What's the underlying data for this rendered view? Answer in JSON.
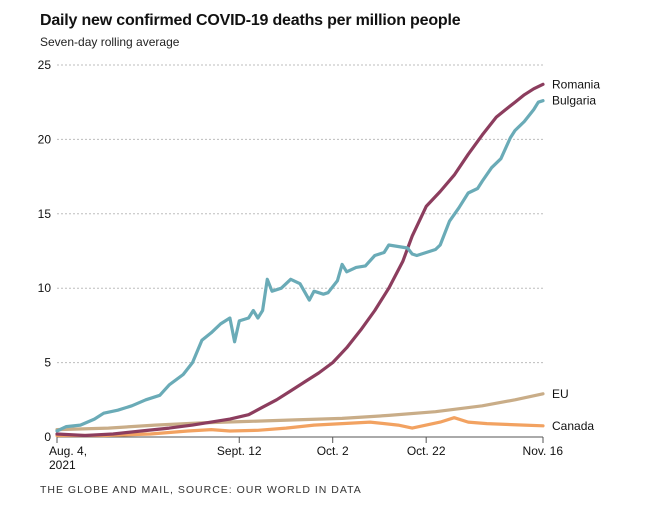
{
  "title": "Daily new confirmed COVID-19 deaths per million people",
  "subtitle": "Seven-day rolling average",
  "source": "THE GLOBE AND MAIL, SOURCE: OUR WORLD IN DATA",
  "chart_data": {
    "type": "line",
    "title": "Daily new confirmed COVID-19 deaths per million people",
    "subtitle": "Seven-day rolling average",
    "xlabel": "",
    "ylabel": "",
    "x_start": "2021-08-04",
    "x_end": "2021-11-16",
    "ylim": [
      0,
      25
    ],
    "yticks": [
      0,
      5,
      10,
      15,
      20,
      25
    ],
    "xticks": [
      {
        "date": "2021-08-04",
        "label": "Aug. 4,",
        "label2": "2021"
      },
      {
        "date": "2021-09-12",
        "label": "Sept. 12",
        "label2": ""
      },
      {
        "date": "2021-10-02",
        "label": "Oct. 2",
        "label2": ""
      },
      {
        "date": "2021-10-22",
        "label": "Oct. 22",
        "label2": ""
      },
      {
        "date": "2021-11-16",
        "label": "Nov. 16",
        "label2": ""
      }
    ],
    "grid": true,
    "legend": "direct labels at right end of lines",
    "series": [
      {
        "name": "Bulgaria",
        "color": "#6aabb7",
        "points": [
          [
            "2021-08-04",
            0.4
          ],
          [
            "2021-08-06",
            0.7
          ],
          [
            "2021-08-09",
            0.8
          ],
          [
            "2021-08-12",
            1.2
          ],
          [
            "2021-08-14",
            1.6
          ],
          [
            "2021-08-17",
            1.8
          ],
          [
            "2021-08-20",
            2.1
          ],
          [
            "2021-08-23",
            2.5
          ],
          [
            "2021-08-26",
            2.8
          ],
          [
            "2021-08-28",
            3.5
          ],
          [
            "2021-08-31",
            4.2
          ],
          [
            "2021-09-02",
            5.0
          ],
          [
            "2021-09-04",
            6.5
          ],
          [
            "2021-09-06",
            7.0
          ],
          [
            "2021-09-08",
            7.6
          ],
          [
            "2021-09-10",
            8.0
          ],
          [
            "2021-09-11",
            6.4
          ],
          [
            "2021-09-12",
            7.8
          ],
          [
            "2021-09-14",
            8.0
          ],
          [
            "2021-09-15",
            8.5
          ],
          [
            "2021-09-16",
            8.0
          ],
          [
            "2021-09-17",
            8.5
          ],
          [
            "2021-09-18",
            10.6
          ],
          [
            "2021-09-19",
            9.8
          ],
          [
            "2021-09-21",
            10.0
          ],
          [
            "2021-09-23",
            10.6
          ],
          [
            "2021-09-25",
            10.3
          ],
          [
            "2021-09-27",
            9.2
          ],
          [
            "2021-09-28",
            9.8
          ],
          [
            "2021-09-30",
            9.6
          ],
          [
            "2021-10-01",
            9.7
          ],
          [
            "2021-10-03",
            10.5
          ],
          [
            "2021-10-04",
            11.6
          ],
          [
            "2021-10-05",
            11.1
          ],
          [
            "2021-10-07",
            11.4
          ],
          [
            "2021-10-09",
            11.5
          ],
          [
            "2021-10-11",
            12.2
          ],
          [
            "2021-10-13",
            12.4
          ],
          [
            "2021-10-14",
            12.9
          ],
          [
            "2021-10-16",
            12.8
          ],
          [
            "2021-10-18",
            12.7
          ],
          [
            "2021-10-19",
            12.3
          ],
          [
            "2021-10-20",
            12.2
          ],
          [
            "2021-10-22",
            12.4
          ],
          [
            "2021-10-24",
            12.6
          ],
          [
            "2021-10-25",
            12.9
          ],
          [
            "2021-10-27",
            14.5
          ],
          [
            "2021-10-29",
            15.4
          ],
          [
            "2021-10-31",
            16.4
          ],
          [
            "2021-11-02",
            16.7
          ],
          [
            "2021-11-03",
            17.2
          ],
          [
            "2021-11-05",
            18.1
          ],
          [
            "2021-11-07",
            18.7
          ],
          [
            "2021-11-09",
            20.1
          ],
          [
            "2021-11-10",
            20.6
          ],
          [
            "2021-11-12",
            21.2
          ],
          [
            "2021-11-14",
            22.0
          ],
          [
            "2021-11-15",
            22.5
          ],
          [
            "2021-11-16",
            22.6
          ]
        ]
      },
      {
        "name": "Romania",
        "color": "#8c3d5e",
        "points": [
          [
            "2021-08-04",
            0.2
          ],
          [
            "2021-08-10",
            0.1
          ],
          [
            "2021-08-16",
            0.2
          ],
          [
            "2021-08-22",
            0.4
          ],
          [
            "2021-08-28",
            0.6
          ],
          [
            "2021-09-02",
            0.8
          ],
          [
            "2021-09-06",
            1.0
          ],
          [
            "2021-09-10",
            1.2
          ],
          [
            "2021-09-14",
            1.5
          ],
          [
            "2021-09-17",
            2.0
          ],
          [
            "2021-09-20",
            2.5
          ],
          [
            "2021-09-23",
            3.1
          ],
          [
            "2021-09-26",
            3.7
          ],
          [
            "2021-09-29",
            4.3
          ],
          [
            "2021-10-02",
            5.0
          ],
          [
            "2021-10-05",
            6.0
          ],
          [
            "2021-10-08",
            7.2
          ],
          [
            "2021-10-11",
            8.5
          ],
          [
            "2021-10-14",
            10.0
          ],
          [
            "2021-10-17",
            11.8
          ],
          [
            "2021-10-19",
            13.5
          ],
          [
            "2021-10-22",
            15.5
          ],
          [
            "2021-10-25",
            16.5
          ],
          [
            "2021-10-28",
            17.6
          ],
          [
            "2021-10-31",
            19.0
          ],
          [
            "2021-11-03",
            20.3
          ],
          [
            "2021-11-06",
            21.5
          ],
          [
            "2021-11-08",
            22.0
          ],
          [
            "2021-11-10",
            22.5
          ],
          [
            "2021-11-12",
            23.0
          ],
          [
            "2021-11-14",
            23.4
          ],
          [
            "2021-11-16",
            23.7
          ]
        ]
      },
      {
        "name": "EU",
        "color": "#c9ad88",
        "points": [
          [
            "2021-08-04",
            0.5
          ],
          [
            "2021-08-15",
            0.6
          ],
          [
            "2021-08-25",
            0.8
          ],
          [
            "2021-09-04",
            0.95
          ],
          [
            "2021-09-14",
            1.05
          ],
          [
            "2021-09-24",
            1.15
          ],
          [
            "2021-10-04",
            1.25
          ],
          [
            "2021-10-14",
            1.45
          ],
          [
            "2021-10-24",
            1.7
          ],
          [
            "2021-11-03",
            2.1
          ],
          [
            "2021-11-10",
            2.5
          ],
          [
            "2021-11-16",
            2.9
          ]
        ]
      },
      {
        "name": "Canada",
        "color": "#f2a261",
        "points": [
          [
            "2021-08-04",
            0.1
          ],
          [
            "2021-08-14",
            0.1
          ],
          [
            "2021-08-24",
            0.2
          ],
          [
            "2021-09-01",
            0.4
          ],
          [
            "2021-09-06",
            0.5
          ],
          [
            "2021-09-10",
            0.4
          ],
          [
            "2021-09-16",
            0.45
          ],
          [
            "2021-09-22",
            0.6
          ],
          [
            "2021-09-28",
            0.8
          ],
          [
            "2021-10-04",
            0.9
          ],
          [
            "2021-10-10",
            1.0
          ],
          [
            "2021-10-16",
            0.8
          ],
          [
            "2021-10-19",
            0.6
          ],
          [
            "2021-10-22",
            0.8
          ],
          [
            "2021-10-25",
            1.0
          ],
          [
            "2021-10-28",
            1.3
          ],
          [
            "2021-10-31",
            1.0
          ],
          [
            "2021-11-04",
            0.9
          ],
          [
            "2021-11-08",
            0.85
          ],
          [
            "2021-11-12",
            0.8
          ],
          [
            "2021-11-16",
            0.75
          ]
        ]
      }
    ]
  }
}
